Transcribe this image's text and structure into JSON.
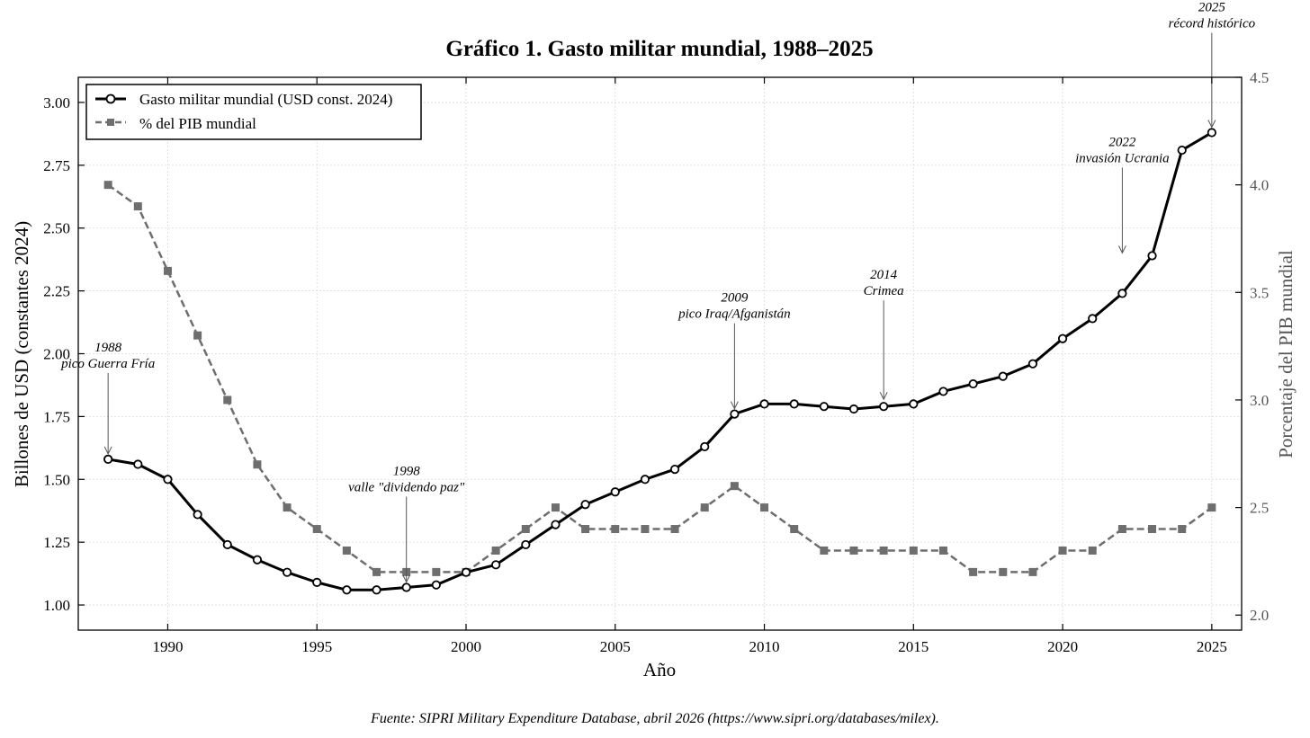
{
  "chart_data": {
    "type": "line",
    "title": "Gráfico 1. Gasto militar mundial, 1988–2025",
    "xlabel": "Año",
    "ylabel_left": "Billones de USD (constantes 2024)",
    "ylabel_right": "Porcentaje del PIB mundial",
    "xlim": [
      1987,
      2026
    ],
    "ylim_left": [
      0.9,
      3.1
    ],
    "ylim_right": [
      1.93,
      4.5
    ],
    "x_ticks": [
      1990,
      1995,
      2000,
      2005,
      2010,
      2015,
      2020,
      2025
    ],
    "y_ticks_left": [
      "1.00",
      "1.25",
      "1.50",
      "1.75",
      "2.00",
      "2.25",
      "2.50",
      "2.75",
      "3.00"
    ],
    "y_ticks_right": [
      "2.0",
      "2.5",
      "3.0",
      "3.5",
      "4.0",
      "4.5"
    ],
    "grid": true,
    "legend_position": "top-left",
    "x": [
      1988,
      1989,
      1990,
      1991,
      1992,
      1993,
      1994,
      1995,
      1996,
      1997,
      1998,
      1999,
      2000,
      2001,
      2002,
      2003,
      2004,
      2005,
      2006,
      2007,
      2008,
      2009,
      2010,
      2011,
      2012,
      2013,
      2014,
      2015,
      2016,
      2017,
      2018,
      2019,
      2020,
      2021,
      2022,
      2023,
      2024,
      2025
    ],
    "series": [
      {
        "name": "Gasto militar mundial (USD const. 2024)",
        "axis": "left",
        "color": "#000000",
        "style": "solid",
        "marker": "circle",
        "values": [
          1.58,
          1.56,
          1.5,
          1.36,
          1.24,
          1.18,
          1.13,
          1.09,
          1.06,
          1.06,
          1.07,
          1.08,
          1.13,
          1.16,
          1.24,
          1.32,
          1.4,
          1.45,
          1.5,
          1.54,
          1.63,
          1.76,
          1.8,
          1.8,
          1.79,
          1.78,
          1.79,
          1.8,
          1.85,
          1.88,
          1.91,
          1.96,
          2.06,
          2.14,
          2.24,
          2.39,
          2.81,
          2.88
        ]
      },
      {
        "name": "% del PIB mundial",
        "axis": "right",
        "color": "#6e6e6e",
        "style": "dashed",
        "marker": "square",
        "values": [
          4.0,
          3.9,
          3.6,
          3.3,
          3.0,
          2.7,
          2.5,
          2.4,
          2.3,
          2.2,
          2.2,
          2.2,
          2.2,
          2.3,
          2.4,
          2.5,
          2.4,
          2.4,
          2.4,
          2.4,
          2.5,
          2.6,
          2.5,
          2.4,
          2.3,
          2.3,
          2.3,
          2.3,
          2.3,
          2.2,
          2.2,
          2.2,
          2.3,
          2.3,
          2.4,
          2.4,
          2.4,
          2.5
        ]
      }
    ],
    "annotations": [
      {
        "year_label": "1988",
        "text": "pico Guerra Fría",
        "x": 1988,
        "y": 1.58
      },
      {
        "year_label": "1998",
        "text": "valle \"dividendo paz\"",
        "x": 1998,
        "y": 1.07
      },
      {
        "year_label": "2009",
        "text": "pico Iraq/Afganistán",
        "x": 2009,
        "y": 1.76
      },
      {
        "year_label": "2014",
        "text": "Crimea",
        "x": 2014,
        "y": 1.79
      },
      {
        "year_label": "2022",
        "text": "invasión Ucrania",
        "x": 2022,
        "y": 2.24
      },
      {
        "year_label": "2025",
        "text": "récord histórico",
        "x": 2025,
        "y": 2.88
      }
    ],
    "source": "Fuente: SIPRI Military Expenditure Database, abril 2026 (https://www.sipri.org/databases/milex)."
  }
}
